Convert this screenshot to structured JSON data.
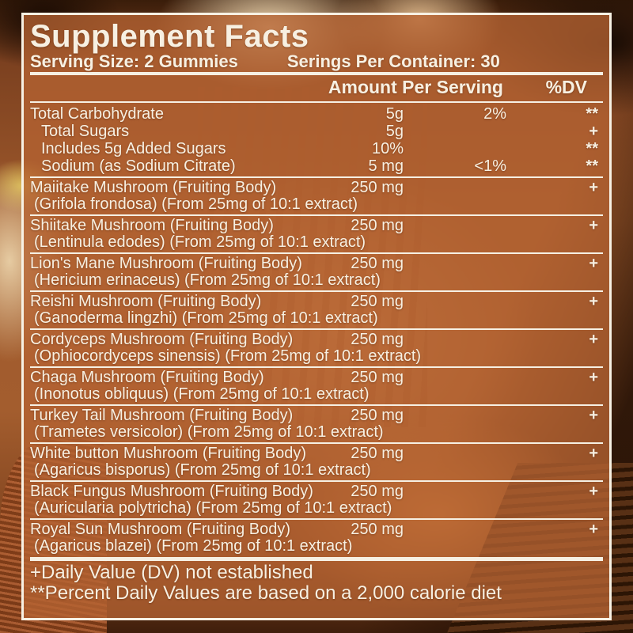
{
  "label": {
    "title": "Supplement Facts",
    "serving_size": "Serving Size: 2 Gummies",
    "servings_per_container": "Serings Per Container: 30",
    "header": {
      "amount": "Amount Per Serving",
      "dv": "%DV"
    },
    "nutrients": [
      {
        "name": "Total Carbohydrate",
        "indent": false,
        "amount": "5g",
        "dv": "2%",
        "sym": "**"
      },
      {
        "name": "Total Sugars",
        "indent": true,
        "amount": "5g",
        "dv": "",
        "sym": "+"
      },
      {
        "name": "Includes 5g Added Sugars",
        "indent": true,
        "amount": "10%",
        "dv": "",
        "sym": "**"
      },
      {
        "name": "Sodium (as Sodium Citrate)",
        "indent": true,
        "amount": "5 mg",
        "dv": "<1%",
        "sym": "**"
      }
    ],
    "ingredients": [
      {
        "name": "Maiitake Mushroom (Fruiting Body)",
        "detail": "(Grifola frondosa) (From 25mg of 10:1 extract)",
        "amount": "250 mg",
        "sym": "+"
      },
      {
        "name": "Shiitake Mushroom (Fruiting Body)",
        "detail": "(Lentinula edodes) (From 25mg of 10:1 extract)",
        "amount": "250 mg",
        "sym": "+"
      },
      {
        "name": "Lion's Mane Mushroom (Fruiting Body)",
        "detail": "(Hericium erinaceus) (From 25mg of 10:1 extract)",
        "amount": "250 mg",
        "sym": "+"
      },
      {
        "name": "Reishi Mushroom (Fruiting Body)",
        "detail": "(Ganoderma lingzhi) (From 25mg of 10:1 extract)",
        "amount": "250 mg",
        "sym": "+"
      },
      {
        "name": "Cordyceps Mushroom (Fruiting Body)",
        "detail": "(Ophiocordyceps sinensis) (From 25mg of 10:1 extract)",
        "amount": "250 mg",
        "sym": "+"
      },
      {
        "name": "Chaga Mushroom (Fruiting Body)",
        "detail": "(Inonotus obliquus) (From 25mg of 10:1 extract)",
        "amount": "250 mg",
        "sym": "+"
      },
      {
        "name": "Turkey Tail Mushroom (Fruiting Body)",
        "detail": "(Trametes versicolor) (From 25mg of 10:1 extract)",
        "amount": "250 mg",
        "sym": "+"
      },
      {
        "name": "White button Mushroom (Fruiting Body)",
        "detail": "(Agaricus bisporus) (From 25mg of 10:1 extract)",
        "amount": "250 mg",
        "sym": "+"
      },
      {
        "name": "Black Fungus Mushroom (Fruiting Body)",
        "detail": "(Auricularia polytricha) (From 25mg of 10:1 extract)",
        "amount": "250 mg",
        "sym": "+"
      },
      {
        "name": "Royal Sun Mushroom (Fruiting Body)",
        "detail": "(Agaricus blazei) (From 25mg of 10:1 extract)",
        "amount": "250 mg",
        "sym": "+"
      }
    ],
    "footnotes": [
      "+Daily Value (DV) not established",
      "**Percent Daily Values are based on a 2,000 calorie diet"
    ]
  },
  "colors": {
    "label_tint": "#b5633a",
    "label_border": "#f7f1e4",
    "text": "#f7f0e2",
    "rule": "#f6f0e3",
    "photo_dark_corner": "#2a1408",
    "photo_orange": "#a05a2c",
    "photo_cream": "#e9d3ad",
    "photo_wood_dark": "#2c1505",
    "photo_gills_red": "#b06034"
  }
}
